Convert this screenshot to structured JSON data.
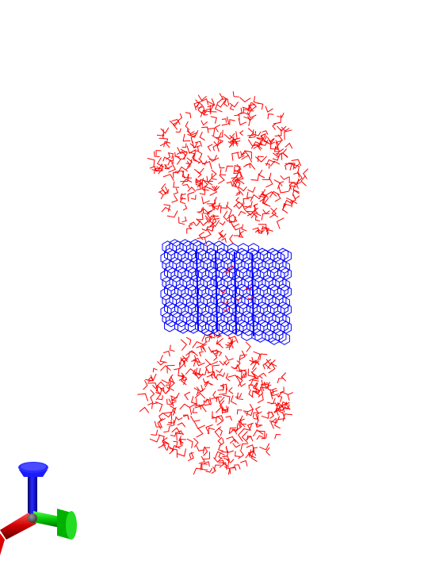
{
  "scene": {
    "background_color": "#ffffff",
    "water_color": "#ff0000",
    "nanotube_color": "#0000ff",
    "axes": {
      "x_color": "#cc0000",
      "y_color": "#00cc00",
      "z_color": "#0000cc",
      "icon": "xyz-axes-triad-icon"
    }
  }
}
